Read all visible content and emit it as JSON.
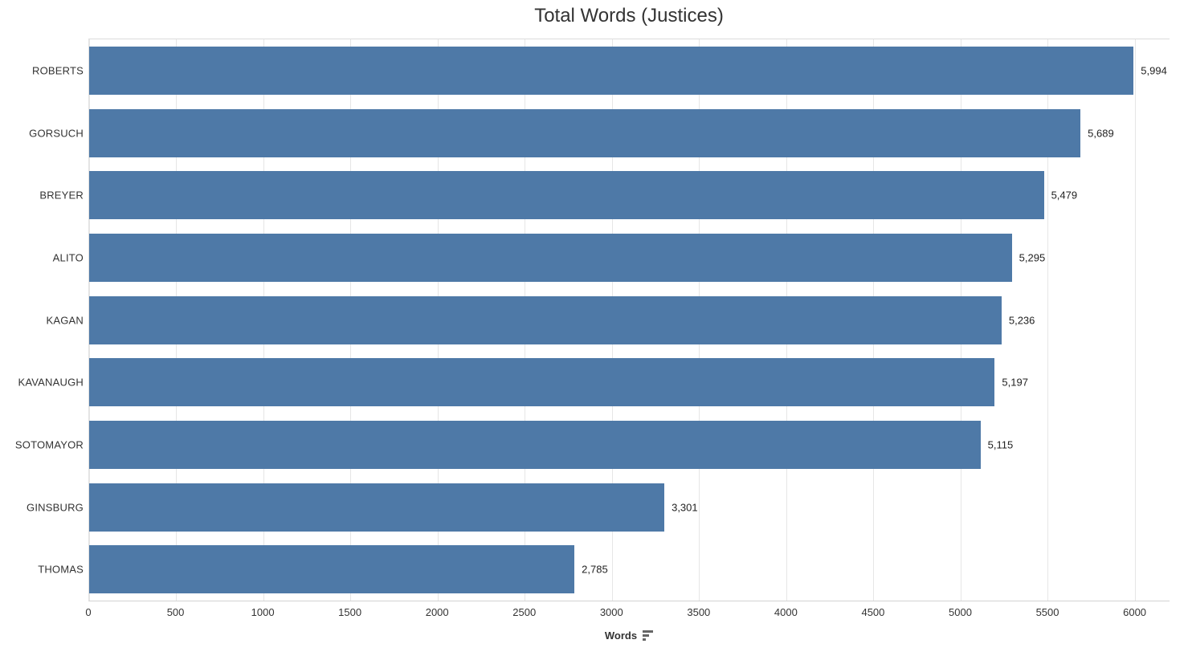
{
  "chart_data": {
    "type": "bar",
    "orientation": "horizontal",
    "title": "Total Words (Justices)",
    "categories": [
      "ROBERTS",
      "GORSUCH",
      "BREYER",
      "ALITO",
      "KAGAN",
      "KAVANAUGH",
      "SOTOMAYOR",
      "GINSBURG",
      "THOMAS"
    ],
    "values": [
      5994,
      5689,
      5479,
      5295,
      5236,
      5197,
      5115,
      3301,
      2785
    ],
    "value_labels": [
      "5,994",
      "5,689",
      "5,479",
      "5,295",
      "5,236",
      "5,197",
      "5,115",
      "3,301",
      "2,785"
    ],
    "xlabel": "Words",
    "ylabel": "",
    "x_ticks": [
      0,
      500,
      1000,
      1500,
      2000,
      2500,
      3000,
      3500,
      4000,
      4500,
      5000,
      5500,
      6000
    ],
    "xlim": [
      0,
      6200
    ],
    "grid": true,
    "legend": "none",
    "sort_indicator": "descending"
  },
  "colors": {
    "bar": "#4e79a7",
    "grid": "#e6e6e6",
    "axis_line": "#d2d2d2",
    "text": "#333333",
    "value_text": "#222222",
    "sort_icon": "#666666",
    "background": "#ffffff"
  }
}
